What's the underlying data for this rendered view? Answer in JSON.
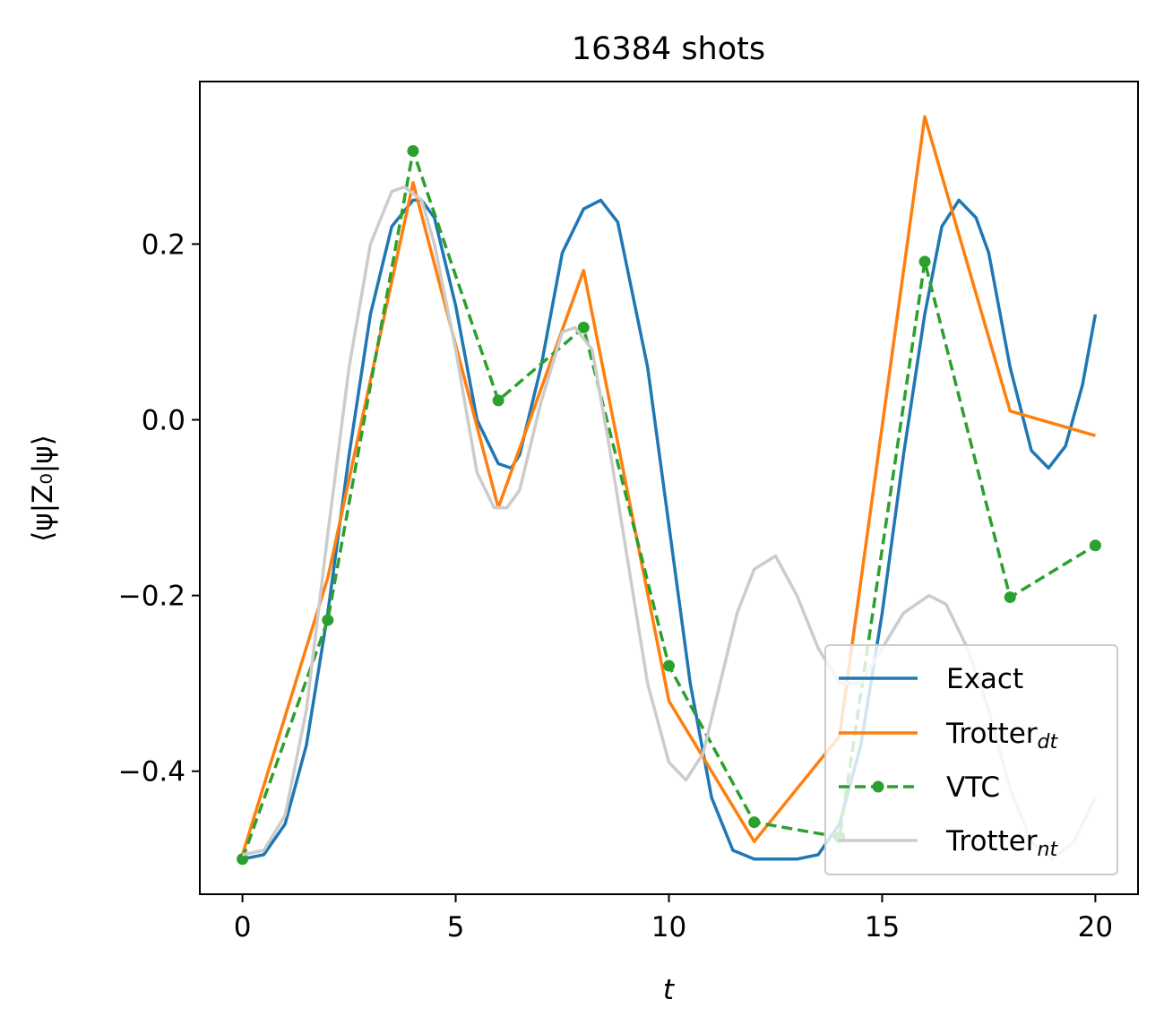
{
  "chart_data": {
    "type": "line",
    "title": "16384 shots",
    "xlabel": "t",
    "ylabel": "⟨ψ|Z₀|ψ⟩",
    "xlim": [
      -1,
      21
    ],
    "ylim": [
      -0.54,
      0.385
    ],
    "xticks": [
      0,
      5,
      10,
      15,
      20
    ],
    "xtick_labels": [
      "0",
      "5",
      "10",
      "15",
      "20"
    ],
    "yticks": [
      -0.4,
      -0.2,
      0.0,
      0.2
    ],
    "ytick_labels": [
      "−0.4",
      "−0.2",
      "0.0",
      "0.2"
    ],
    "grid": false,
    "legend": "lower-right",
    "series": [
      {
        "name": "Exact",
        "legend_main": "Exact",
        "legend_sub": "",
        "color": "#1f77b4",
        "style": "solid",
        "x": [
          0,
          0.5,
          1.0,
          1.5,
          2.0,
          2.5,
          3.0,
          3.5,
          4.0,
          4.2,
          4.5,
          5.0,
          5.5,
          6.0,
          6.3,
          6.5,
          7.0,
          7.5,
          8.0,
          8.4,
          8.8,
          9.5,
          10.0,
          10.5,
          11.0,
          11.5,
          12.0,
          12.5,
          13.0,
          13.5,
          14.0,
          14.5,
          15.0,
          15.5,
          16.0,
          16.4,
          16.8,
          17.2,
          17.5,
          18.0,
          18.5,
          18.9,
          19.3,
          19.7,
          20.0
        ],
        "y": [
          -0.5,
          -0.495,
          -0.46,
          -0.37,
          -0.22,
          -0.04,
          0.12,
          0.22,
          0.25,
          0.25,
          0.23,
          0.13,
          0.0,
          -0.05,
          -0.055,
          -0.04,
          0.06,
          0.19,
          0.24,
          0.25,
          0.225,
          0.06,
          -0.12,
          -0.3,
          -0.43,
          -0.49,
          -0.5,
          -0.5,
          -0.5,
          -0.495,
          -0.46,
          -0.37,
          -0.22,
          -0.04,
          0.12,
          0.22,
          0.25,
          0.23,
          0.19,
          0.06,
          -0.035,
          -0.055,
          -0.03,
          0.04,
          0.12
        ]
      },
      {
        "name": "Trotter_dt",
        "legend_main": "Trotter",
        "legend_sub": "dt",
        "color": "#ff7f0e",
        "style": "solid",
        "x": [
          0,
          2,
          4,
          6,
          8,
          10,
          12,
          14,
          16,
          18,
          20
        ],
        "y": [
          -0.495,
          -0.18,
          0.27,
          -0.1,
          0.17,
          -0.32,
          -0.48,
          -0.36,
          0.345,
          0.01,
          -0.018
        ]
      },
      {
        "name": "VTC",
        "legend_main": "VTC",
        "legend_sub": "",
        "color": "#2ca02c",
        "style": "dashed-markers",
        "x": [
          0,
          2,
          4,
          6,
          8,
          10,
          12,
          14,
          16,
          18,
          20
        ],
        "y": [
          -0.5,
          -0.228,
          0.306,
          0.022,
          0.105,
          -0.28,
          -0.458,
          -0.475,
          0.18,
          -0.202,
          -0.143
        ]
      },
      {
        "name": "Trotter_nt",
        "legend_main": "Trotter",
        "legend_sub": "nt",
        "color": "#cccccc",
        "style": "solid",
        "x": [
          0,
          0.5,
          1.0,
          1.5,
          2.0,
          2.5,
          3.0,
          3.5,
          3.8,
          4.2,
          4.5,
          5.0,
          5.5,
          5.9,
          6.2,
          6.5,
          7.0,
          7.5,
          7.8,
          8.2,
          8.6,
          9.0,
          9.5,
          10.0,
          10.4,
          10.8,
          11.2,
          11.6,
          12.0,
          12.5,
          13.0,
          13.5,
          14.0,
          14.5,
          15.0,
          15.5,
          16.1,
          16.5,
          17.0,
          17.5,
          18.0,
          18.5,
          19.0,
          19.5,
          20.0
        ],
        "y": [
          -0.495,
          -0.49,
          -0.45,
          -0.33,
          -0.13,
          0.06,
          0.2,
          0.26,
          0.265,
          0.25,
          0.2,
          0.08,
          -0.06,
          -0.1,
          -0.1,
          -0.08,
          0.02,
          0.1,
          0.105,
          0.08,
          -0.03,
          -0.15,
          -0.3,
          -0.39,
          -0.41,
          -0.38,
          -0.3,
          -0.22,
          -0.17,
          -0.155,
          -0.2,
          -0.26,
          -0.3,
          -0.3,
          -0.26,
          -0.22,
          -0.2,
          -0.21,
          -0.26,
          -0.33,
          -0.42,
          -0.48,
          -0.5,
          -0.48,
          -0.43
        ]
      }
    ]
  }
}
